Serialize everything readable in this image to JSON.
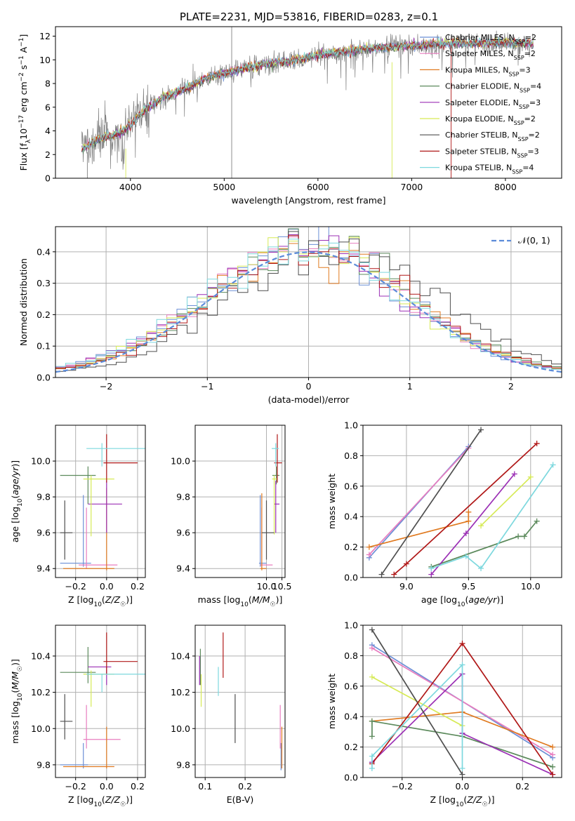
{
  "colors": {
    "Chabrier MILES": "#6b8fd6",
    "Salpeter MILES": "#e87dbf",
    "Kroupa MILES": "#e07a20",
    "Chabrier ELODIE": "#5c8a5c",
    "Salpeter ELODIE": "#9b2fb5",
    "Kroupa ELODIE": "#d6ea55",
    "Chabrier STELIB": "#4f4f4f",
    "Salpeter STELIB": "#b01818",
    "Kroupa STELIB": "#7dd8de"
  },
  "chart_data": [
    {
      "id": "spectrum",
      "type": "line",
      "title": "PLATE=2231, MJD=53816, FIBERID=0283, z=0.1",
      "xlabel": "wavelength [Angstrom, rest frame]",
      "ylabel": "Flux [f_λ10^-17 erg cm^-2 s^-1 A^-1]",
      "xlim": [
        3200,
        8600
      ],
      "ylim": [
        0,
        12.8
      ],
      "xticks": [
        4000,
        5000,
        6000,
        7000,
        8000
      ],
      "yticks": [
        0,
        2,
        4,
        6,
        8,
        10,
        12
      ],
      "grid": false,
      "legend_position": "top-right",
      "data_series": {
        "name": "data",
        "color": "#808080"
      },
      "continuum": {
        "x": [
          3480,
          3600,
          3700,
          3800,
          3900,
          4000,
          4100,
          4200,
          4300,
          4400,
          4500,
          4600,
          4700,
          4800,
          4900,
          5000,
          5200,
          5400,
          5600,
          5800,
          6000,
          6200,
          6400,
          6600,
          6800,
          7000,
          7200,
          7400,
          7600,
          7800,
          8000,
          8200,
          8300
        ],
        "y": [
          2.5,
          3.0,
          3.4,
          3.6,
          3.9,
          4.5,
          5.4,
          6.1,
          6.6,
          7.0,
          7.3,
          7.6,
          8.0,
          8.4,
          8.7,
          8.9,
          9.2,
          9.6,
          9.8,
          10.0,
          10.4,
          10.6,
          10.8,
          11.0,
          11.1,
          11.2,
          11.3,
          11.4,
          11.4,
          11.4,
          11.5,
          11.4,
          11.3
        ]
      },
      "legend": [
        {
          "name": "Chabrier MILES",
          "label_main": "Chabrier MILES, N",
          "label_sub": "SSP",
          "label_end": "=2"
        },
        {
          "name": "Salpeter MILES",
          "label_main": "Salpeter MILES, N",
          "label_sub": "SSP",
          "label_end": "=2"
        },
        {
          "name": "Kroupa MILES",
          "label_main": "Kroupa MILES, N",
          "label_sub": "SSP",
          "label_end": "=3"
        },
        {
          "name": "Chabrier ELODIE",
          "label_main": "Chabrier ELODIE, N",
          "label_sub": "SSP",
          "label_end": "=4"
        },
        {
          "name": "Salpeter ELODIE",
          "label_main": "Salpeter ELODIE, N",
          "label_sub": "SSP",
          "label_end": "=3"
        },
        {
          "name": "Kroupa ELODIE",
          "label_main": "Kroupa ELODIE, N",
          "label_sub": "SSP",
          "label_end": "=2"
        },
        {
          "name": "Chabrier STELIB",
          "label_main": "Chabrier STELIB, N",
          "label_sub": "SSP",
          "label_end": "=2"
        },
        {
          "name": "Salpeter STELIB",
          "label_main": "Salpeter STELIB, N",
          "label_sub": "SSP",
          "label_end": "=3"
        },
        {
          "name": "Kroupa STELIB",
          "label_main": "Kroupa STELIB, N",
          "label_sub": "SSP",
          "label_end": "=4"
        }
      ]
    },
    {
      "id": "residuals",
      "type": "step",
      "xlabel": "(data-model)/error",
      "ylabel": "Normed distribution",
      "xlim": [
        -2.5,
        2.5
      ],
      "ylim": [
        0,
        0.48
      ],
      "xticks": [
        -2,
        -1,
        0,
        1,
        2
      ],
      "yticks": [
        0.0,
        0.1,
        0.2,
        0.3,
        0.4
      ],
      "grid": true,
      "legend_position": "top-right",
      "reference_curve": {
        "name": "N(0,1)",
        "label": "𝒩(0, 1)",
        "color": "#5b8bd9",
        "style": "dashed"
      }
    },
    {
      "id": "age_vs_Z",
      "type": "errorbar",
      "xlabel": "Z [log10(Z/Z☉)]",
      "ylabel": "age [log10(age/yr)]",
      "xlim": [
        -0.33,
        0.25
      ],
      "ylim": [
        9.35,
        10.2
      ],
      "xticks": [
        -0.2,
        0.0,
        0.2
      ],
      "yticks": [
        9.4,
        9.6,
        9.8,
        10.0
      ],
      "grid": true,
      "points": [
        {
          "model": "Chabrier MILES",
          "x": -0.15,
          "y": 9.43,
          "xerr": [
            0.15,
            0.05
          ],
          "yerr": [
            0.02,
            0.38
          ]
        },
        {
          "model": "Salpeter MILES",
          "x": -0.13,
          "y": 9.42,
          "xerr": [
            0.05,
            0.2
          ],
          "yerr": [
            0.02,
            0.32
          ]
        },
        {
          "model": "Kroupa MILES",
          "x": 0.0,
          "y": 9.4,
          "xerr": [
            0.28,
            0.05
          ],
          "yerr": [
            0.01,
            0.45
          ]
        },
        {
          "model": "Chabrier ELODIE",
          "x": -0.12,
          "y": 9.92,
          "xerr": [
            0.18,
            0.05
          ],
          "yerr": [
            0.16,
            0.05
          ]
        },
        {
          "model": "Salpeter ELODIE",
          "x": 0.0,
          "y": 9.76,
          "xerr": [
            0.12,
            0.1
          ],
          "yerr": [
            0.16,
            0.13
          ]
        },
        {
          "model": "Kroupa ELODIE",
          "x": -0.1,
          "y": 9.9,
          "xerr": [
            0.05,
            0.15
          ],
          "yerr": [
            0.32,
            0.02
          ]
        },
        {
          "model": "Chabrier STELIB",
          "x": -0.27,
          "y": 9.6,
          "xerr": [
            0.03,
            0.05
          ],
          "yerr": [
            0.15,
            0.18
          ]
        },
        {
          "model": "Salpeter STELIB",
          "x": 0.0,
          "y": 9.99,
          "xerr": [
            0.02,
            0.2
          ],
          "yerr": [
            0.11,
            0.16
          ]
        },
        {
          "model": "Kroupa STELIB",
          "x": -0.03,
          "y": 10.07,
          "xerr": [
            0.1,
            0.28
          ],
          "yerr": [
            0.1,
            0.03
          ]
        }
      ]
    },
    {
      "id": "age_vs_mass",
      "type": "errorbar",
      "xlabel": "mass [log10(M/M☉)]",
      "ylabel": "",
      "xlim": [
        7.7,
        10.6
      ],
      "ylim": [
        9.35,
        10.2
      ],
      "xticks": [
        10.0,
        10.5
      ],
      "yticks": [
        9.4,
        9.6,
        9.8,
        10.0
      ],
      "grid": true,
      "points": [
        {
          "model": "Chabrier MILES",
          "x": 9.8,
          "y": 9.43,
          "xerr": [
            0.04,
            0.2
          ],
          "yerr": [
            0.02,
            0.38
          ]
        },
        {
          "model": "Salpeter MILES",
          "x": 9.85,
          "y": 9.42,
          "xerr": [
            0.05,
            0.35
          ],
          "yerr": [
            0.02,
            0.32
          ]
        },
        {
          "model": "Kroupa MILES",
          "x": 9.85,
          "y": 9.4,
          "xerr": [
            0.05,
            0.15
          ],
          "yerr": [
            0.01,
            0.42
          ]
        },
        {
          "model": "Chabrier ELODIE",
          "x": 10.32,
          "y": 9.92,
          "xerr": [
            0.13,
            0.1
          ],
          "yerr": [
            0.05,
            0.05
          ]
        },
        {
          "model": "Salpeter ELODIE",
          "x": 10.3,
          "y": 9.76,
          "xerr": [
            0.06,
            0.12
          ],
          "yerr": [
            0.16,
            0.13
          ]
        },
        {
          "model": "Kroupa ELODIE",
          "x": 10.25,
          "y": 9.9,
          "xerr": [
            0.07,
            0.1
          ],
          "yerr": [
            0.31,
            0.02
          ]
        },
        {
          "model": "Chabrier STELIB",
          "x": 10.0,
          "y": 9.6,
          "xerr": [
            0.15,
            0.25
          ],
          "yerr": [
            0.15,
            0.18
          ]
        },
        {
          "model": "Salpeter STELIB",
          "x": 10.35,
          "y": 9.99,
          "xerr": [
            0.1,
            0.15
          ],
          "yerr": [
            0.11,
            0.16
          ]
        },
        {
          "model": "Kroupa STELIB",
          "x": 10.3,
          "y": 10.07,
          "xerr": [
            0.13,
            0.1
          ],
          "yerr": [
            0.1,
            0.03
          ]
        }
      ]
    },
    {
      "id": "weight_vs_age",
      "type": "line",
      "xlabel": "age [log10(age/yr)]",
      "ylabel": "mass weight",
      "xlim": [
        8.65,
        10.25
      ],
      "ylim": [
        0.0,
        1.0
      ],
      "xticks": [
        9.0,
        9.5,
        10.0
      ],
      "yticks": [
        0.0,
        0.2,
        0.4,
        0.6,
        0.8,
        1.0
      ],
      "grid": true,
      "series": [
        {
          "model": "Chabrier MILES",
          "x": [
            8.7,
            9.5
          ],
          "y": [
            0.13,
            0.86
          ]
        },
        {
          "model": "Salpeter MILES",
          "x": [
            8.7,
            9.5
          ],
          "y": [
            0.15,
            0.85
          ]
        },
        {
          "model": "Kroupa MILES",
          "x": [
            8.7,
            9.5,
            9.5
          ],
          "y": [
            0.2,
            0.37,
            0.43
          ]
        },
        {
          "model": "Chabrier ELODIE",
          "x": [
            9.2,
            9.9,
            9.95,
            10.05
          ],
          "y": [
            0.07,
            0.27,
            0.27,
            0.37
          ]
        },
        {
          "model": "Salpeter ELODIE",
          "x": [
            9.2,
            9.48,
            9.87
          ],
          "y": [
            0.02,
            0.29,
            0.68
          ]
        },
        {
          "model": "Kroupa ELODIE",
          "x": [
            9.6,
            10.0
          ],
          "y": [
            0.34,
            0.66
          ]
        },
        {
          "model": "Chabrier STELIB",
          "x": [
            8.8,
            9.6
          ],
          "y": [
            0.02,
            0.97
          ]
        },
        {
          "model": "Salpeter STELIB",
          "x": [
            8.9,
            9.0,
            10.05
          ],
          "y": [
            0.02,
            0.09,
            0.88
          ]
        },
        {
          "model": "Kroupa STELIB",
          "x": [
            9.2,
            9.48,
            9.6,
            10.18
          ],
          "y": [
            0.06,
            0.14,
            0.06,
            0.74
          ]
        }
      ]
    },
    {
      "id": "mass_vs_Z",
      "type": "errorbar",
      "xlabel": "Z [log10(Z/Z☉)]",
      "ylabel": "mass [log10(M/M☉)]",
      "xlim": [
        -0.33,
        0.25
      ],
      "ylim": [
        9.73,
        10.57
      ],
      "xticks": [
        -0.2,
        0.0,
        0.2
      ],
      "yticks": [
        9.8,
        10.0,
        10.2,
        10.4
      ],
      "grid": true,
      "points": [
        {
          "model": "Chabrier MILES",
          "x": -0.15,
          "y": 9.8,
          "xerr": [
            0.15,
            0.03
          ],
          "yerr": [
            0.02,
            0.12
          ]
        },
        {
          "model": "Salpeter MILES",
          "x": -0.13,
          "y": 9.94,
          "xerr": [
            0.02,
            0.22
          ],
          "yerr": [
            0.05,
            0.19
          ]
        },
        {
          "model": "Kroupa MILES",
          "x": 0.0,
          "y": 9.79,
          "xerr": [
            0.28,
            0.05
          ],
          "yerr": [
            0.01,
            0.22
          ]
        },
        {
          "model": "Chabrier ELODIE",
          "x": -0.12,
          "y": 10.31,
          "xerr": [
            0.18,
            0.05
          ],
          "yerr": [
            0.06,
            0.14
          ]
        },
        {
          "model": "Salpeter ELODIE",
          "x": 0.0,
          "y": 10.34,
          "xerr": [
            0.12,
            0.03
          ],
          "yerr": [
            0.1,
            0.0
          ]
        },
        {
          "model": "Kroupa ELODIE",
          "x": -0.1,
          "y": 10.3,
          "xerr": [
            0.05,
            0.15
          ],
          "yerr": [
            0.18,
            0.02
          ]
        },
        {
          "model": "Chabrier STELIB",
          "x": -0.27,
          "y": 10.04,
          "xerr": [
            0.03,
            0.05
          ],
          "yerr": [
            0.1,
            0.15
          ]
        },
        {
          "model": "Salpeter STELIB",
          "x": 0.0,
          "y": 10.37,
          "xerr": [
            0.02,
            0.2
          ],
          "yerr": [
            0.07,
            0.16
          ]
        },
        {
          "model": "Kroupa STELIB",
          "x": -0.03,
          "y": 10.3,
          "xerr": [
            0.1,
            0.28
          ],
          "yerr": [
            0.1,
            0.0
          ]
        }
      ]
    },
    {
      "id": "mass_vs_EBV",
      "type": "errorbar",
      "xlabel": "E(B-V)",
      "ylabel": "",
      "xlim": [
        0.075,
        0.3
      ],
      "ylim": [
        9.73,
        10.57
      ],
      "xticks": [
        0.1,
        0.2
      ],
      "yticks": [
        9.8,
        10.0,
        10.2,
        10.4
      ],
      "grid": true,
      "points": [
        {
          "model": "Chabrier MILES",
          "x": 0.29,
          "y": 9.8,
          "xerr": [
            0.0,
            0.0
          ],
          "yerr": [
            0.03,
            0.12
          ]
        },
        {
          "model": "Salpeter MILES",
          "x": 0.288,
          "y": 9.94,
          "xerr": [
            0.0,
            0.0
          ],
          "yerr": [
            0.05,
            0.19
          ]
        },
        {
          "model": "Kroupa MILES",
          "x": 0.292,
          "y": 9.79,
          "xerr": [
            0.0,
            0.0
          ],
          "yerr": [
            0.01,
            0.22
          ]
        },
        {
          "model": "Chabrier ELODIE",
          "x": 0.088,
          "y": 10.34,
          "xerr": [
            0.0,
            0.0
          ],
          "yerr": [
            0.1,
            0.1
          ]
        },
        {
          "model": "Salpeter ELODIE",
          "x": 0.086,
          "y": 10.34,
          "xerr": [
            0.0,
            0.0
          ],
          "yerr": [
            0.1,
            0.06
          ]
        },
        {
          "model": "Kroupa ELODIE",
          "x": 0.09,
          "y": 10.22,
          "xerr": [
            0.0,
            0.0
          ],
          "yerr": [
            0.1,
            0.08
          ]
        },
        {
          "model": "Chabrier STELIB",
          "x": 0.175,
          "y": 10.04,
          "xerr": [
            0.0,
            0.0
          ],
          "yerr": [
            0.12,
            0.15
          ]
        },
        {
          "model": "Salpeter STELIB",
          "x": 0.145,
          "y": 10.4,
          "xerr": [
            0.0,
            0.0
          ],
          "yerr": [
            0.12,
            0.13
          ]
        },
        {
          "model": "Kroupa STELIB",
          "x": 0.133,
          "y": 10.24,
          "xerr": [
            0.0,
            0.0
          ],
          "yerr": [
            0.06,
            0.1
          ]
        }
      ]
    },
    {
      "id": "weight_vs_Z",
      "type": "line",
      "xlabel": "Z [log10(Z/Z☉)]",
      "ylabel": "mass weight",
      "xlim": [
        -0.33,
        0.33
      ],
      "ylim": [
        0.0,
        1.0
      ],
      "xticks": [
        -0.2,
        0.0,
        0.2
      ],
      "yticks": [
        0.0,
        0.2,
        0.4,
        0.6,
        0.8,
        1.0
      ],
      "grid": true,
      "series": [
        {
          "model": "Chabrier MILES",
          "x": [
            -0.3,
            0.3
          ],
          "y": [
            0.87,
            0.13
          ]
        },
        {
          "model": "Salpeter MILES",
          "x": [
            -0.3,
            0.3
          ],
          "y": [
            0.85,
            0.15
          ]
        },
        {
          "model": "Kroupa MILES",
          "x": [
            -0.3,
            0.0,
            0.3
          ],
          "y": [
            0.37,
            0.43,
            0.2
          ]
        },
        {
          "model": "Chabrier ELODIE",
          "x": [
            -0.3,
            -0.3,
            0.0,
            0.3
          ],
          "y": [
            0.27,
            0.37,
            0.27,
            0.07
          ]
        },
        {
          "model": "Salpeter ELODIE",
          "x": [
            -0.3,
            0.0,
            0.0,
            0.0,
            0.3
          ],
          "y": [
            0.1,
            0.68,
            0.29,
            0.29,
            0.02
          ]
        },
        {
          "model": "Kroupa ELODIE",
          "x": [
            -0.3,
            0.0
          ],
          "y": [
            0.66,
            0.34
          ]
        },
        {
          "model": "Chabrier STELIB",
          "x": [
            -0.3,
            0.0
          ],
          "y": [
            0.97,
            0.02
          ]
        },
        {
          "model": "Salpeter STELIB",
          "x": [
            -0.3,
            0.0,
            0.3
          ],
          "y": [
            0.09,
            0.88,
            0.02
          ]
        },
        {
          "model": "Kroupa STELIB",
          "x": [
            -0.3,
            -0.3,
            0.0,
            0.0
          ],
          "y": [
            0.06,
            0.14,
            0.74,
            0.06
          ]
        }
      ]
    }
  ]
}
